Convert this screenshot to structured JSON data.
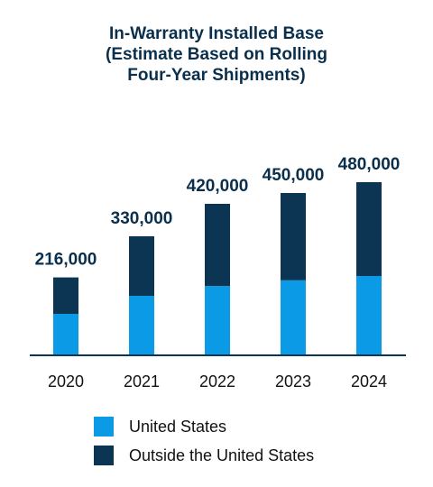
{
  "chart_data": {
    "type": "bar",
    "stacked": true,
    "title_lines": [
      "In-Warranty Installed Base",
      "(Estimate Based on Rolling",
      "Four-Year Shipments)"
    ],
    "categories": [
      "2020",
      "2021",
      "2022",
      "2023",
      "2024"
    ],
    "series": [
      {
        "name": "United States",
        "color": "#0b9ae6",
        "values": [
          115000,
          165000,
          192000,
          208000,
          220000
        ]
      },
      {
        "name": "Outside the United States",
        "color": "#0b3552",
        "values": [
          101000,
          165000,
          228000,
          242000,
          260000
        ]
      }
    ],
    "totals_labels": [
      "216,000",
      "330,000",
      "420,000",
      "450,000",
      "480,000"
    ],
    "ylim": [
      0,
      500000
    ],
    "grid": false,
    "legend_position": "bottom"
  },
  "colors": {
    "title": "#0a2f4c",
    "axis": "#0b3552",
    "text": "#111111"
  }
}
